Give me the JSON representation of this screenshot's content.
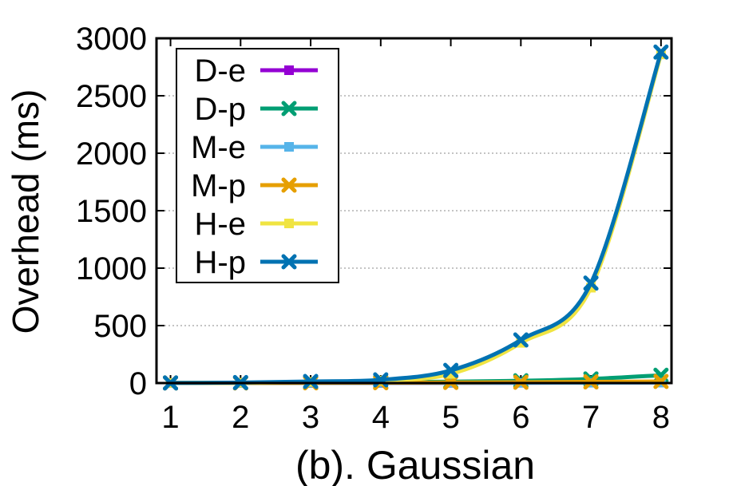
{
  "chart_data": {
    "type": "line",
    "title": "(b).  Gaussian",
    "xlabel": "",
    "ylabel": "Overhead (ms)",
    "x": [
      1,
      2,
      3,
      4,
      5,
      6,
      7,
      8
    ],
    "xlim": [
      0.8,
      8.15
    ],
    "ylim": [
      0,
      3000
    ],
    "xticks": [
      "1",
      "2",
      "3",
      "4",
      "5",
      "6",
      "7",
      "8"
    ],
    "yticks": [
      "0",
      "500",
      "1000",
      "1500",
      "2000",
      "2500",
      "3000"
    ],
    "grid": "horizontal-dotted",
    "legend_position": "top-left",
    "series": [
      {
        "name": "D-e",
        "color": "#9400d3",
        "marker": "square",
        "values": [
          0,
          0,
          1,
          1,
          2,
          3,
          4,
          6
        ]
      },
      {
        "name": "D-p",
        "color": "#009e73",
        "marker": "x",
        "values": [
          1,
          2,
          4,
          7,
          12,
          20,
          36,
          68
        ]
      },
      {
        "name": "M-e",
        "color": "#56b4e9",
        "marker": "square",
        "values": [
          0,
          0,
          1,
          1,
          2,
          2,
          3,
          4
        ]
      },
      {
        "name": "M-p",
        "color": "#e69f00",
        "marker": "x",
        "values": [
          1,
          1,
          2,
          3,
          5,
          7,
          10,
          14
        ]
      },
      {
        "name": "H-e",
        "color": "#f0e442",
        "marker": "square",
        "values": [
          1,
          3,
          10,
          22,
          80,
          350,
          830,
          2860
        ]
      },
      {
        "name": "H-p",
        "color": "#0072b2",
        "marker": "x",
        "values": [
          1,
          4,
          14,
          28,
          110,
          375,
          870,
          2880
        ]
      }
    ]
  }
}
